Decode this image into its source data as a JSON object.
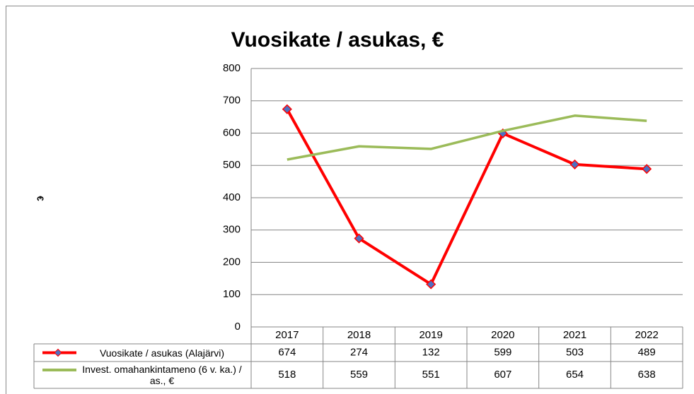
{
  "chart_data": {
    "type": "line",
    "title": "Vuosikate / asukas, €",
    "y_label": "€",
    "categories": [
      "2017",
      "2018",
      "2019",
      "2020",
      "2021",
      "2022"
    ],
    "series": [
      {
        "name": "Vuosikate / asukas (Alajärvi)",
        "color": "#ff0000",
        "marker_color": "#4f6fc0",
        "values": [
          674,
          274,
          132,
          599,
          503,
          489
        ]
      },
      {
        "name": "Invest. omahankintameno (6 v. ka.) / as., €",
        "color": "#9bbb59",
        "values": [
          518,
          559,
          551,
          607,
          654,
          638
        ]
      }
    ],
    "ylim": [
      0,
      800
    ],
    "yticks": [
      0,
      100,
      200,
      300,
      400,
      500,
      600,
      700,
      800
    ],
    "grid": true
  }
}
